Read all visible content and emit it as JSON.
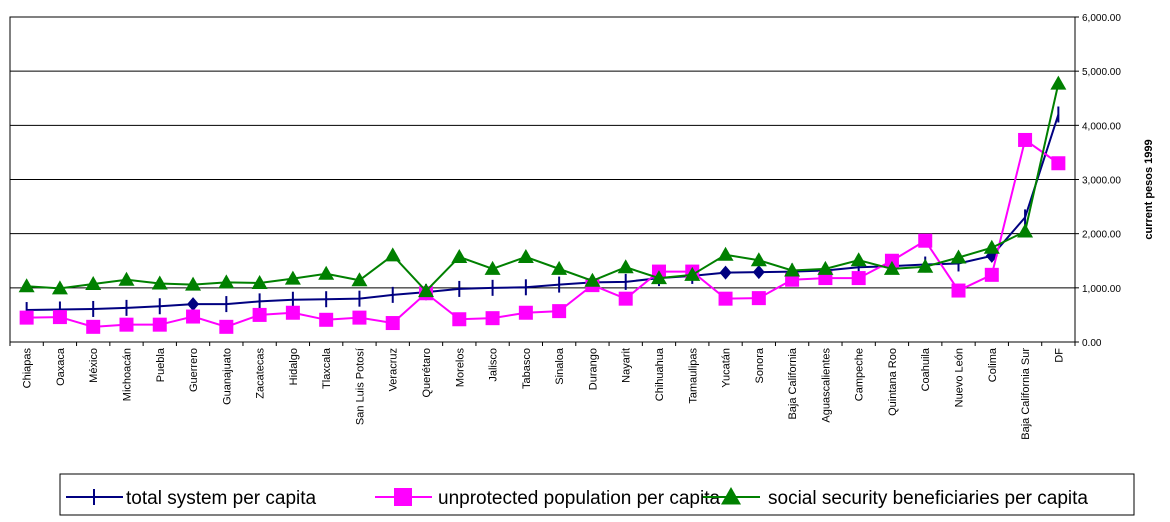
{
  "chart_data": {
    "type": "line",
    "title": "",
    "xlabel": "",
    "ylabel": "current pesos 1999",
    "ylim": [
      0,
      6000
    ],
    "yticks": [
      0,
      1000,
      2000,
      3000,
      4000,
      5000,
      6000
    ],
    "ytick_labels": [
      "0.00",
      "1,000.00",
      "2,000.00",
      "3,000.00",
      "4,000.00",
      "5,000.00",
      "6,000.00"
    ],
    "y_axis_side": "right",
    "grid": "horizontal",
    "legend_position": "bottom",
    "categories": [
      "Chiapas",
      "Oaxaca",
      "México",
      "Michoacán",
      "Puebla",
      "Guerrero",
      "Guanajuato",
      "Zacatecas",
      "Hidalgo",
      "Tlaxcala",
      "San Luis Potosí",
      "Veracruz",
      "Querétaro",
      "Morelos",
      "Jalisco",
      "Tabasco",
      "Sinaloa",
      "Durango",
      "Nayarit",
      "Chihuahua",
      "Tamaulipas",
      "Yucatán",
      "Sonora",
      "Baja California",
      "Aguascalientes",
      "Campeche",
      "Quintana Roo",
      "Coahuila",
      "Nuevo León",
      "Colima",
      "Baja California Sur",
      "DF"
    ],
    "series": [
      {
        "name": "total system per capita",
        "color": "#000080",
        "marker": "plus-diamond",
        "values": [
          590,
          600,
          610,
          630,
          660,
          700,
          700,
          750,
          780,
          790,
          800,
          870,
          920,
          980,
          1000,
          1010,
          1060,
          1100,
          1110,
          1180,
          1220,
          1280,
          1290,
          1300,
          1320,
          1380,
          1400,
          1430,
          1450,
          1590,
          2300,
          4200
        ]
      },
      {
        "name": "unprotected population per capita",
        "color": "#FF00FF",
        "marker": "square",
        "values": [
          450,
          460,
          280,
          320,
          320,
          470,
          280,
          500,
          540,
          410,
          450,
          350,
          900,
          420,
          440,
          540,
          570,
          1050,
          800,
          1300,
          1300,
          800,
          810,
          1150,
          1180,
          1180,
          1500,
          1870,
          950,
          1240,
          3730,
          3300
        ]
      },
      {
        "name": "social security beneficiaries per capita",
        "color": "#008000",
        "marker": "triangle",
        "values": [
          1030,
          990,
          1070,
          1150,
          1080,
          1060,
          1100,
          1090,
          1170,
          1260,
          1140,
          1600,
          940,
          1570,
          1350,
          1570,
          1350,
          1130,
          1380,
          1180,
          1240,
          1610,
          1510,
          1320,
          1350,
          1510,
          1350,
          1390,
          1560,
          1740,
          2040,
          4770
        ]
      }
    ]
  }
}
